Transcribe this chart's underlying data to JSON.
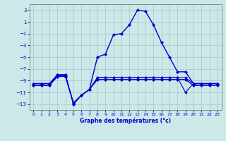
{
  "title": "Graphe des températures (°c)",
  "background_color": "#cce8e8",
  "grid_color": "#a0c8c8",
  "line_color": "#0000cc",
  "xlim": [
    -0.5,
    23.5
  ],
  "ylim": [
    -14,
    4
  ],
  "xticks": [
    0,
    1,
    2,
    3,
    4,
    5,
    6,
    7,
    8,
    9,
    10,
    11,
    12,
    13,
    14,
    15,
    16,
    17,
    18,
    19,
    20,
    21,
    22,
    23
  ],
  "yticks": [
    3,
    1,
    -1,
    -3,
    -5,
    -7,
    -9,
    -11,
    -13
  ],
  "series_main": [
    [
      0,
      -9.5
    ],
    [
      1,
      -9.5
    ],
    [
      2,
      -9.5
    ],
    [
      3,
      -8.0
    ],
    [
      4,
      -8.0
    ],
    [
      5,
      -13.0
    ],
    [
      6,
      -11.5
    ],
    [
      7,
      -10.5
    ],
    [
      8,
      -5.0
    ],
    [
      9,
      -4.5
    ],
    [
      10,
      -1.2
    ],
    [
      11,
      -1.0
    ],
    [
      12,
      0.5
    ],
    [
      13,
      3.0
    ],
    [
      14,
      2.8
    ],
    [
      15,
      0.5
    ],
    [
      16,
      -2.5
    ],
    [
      17,
      -5.0
    ],
    [
      18,
      -7.5
    ],
    [
      19,
      -7.5
    ],
    [
      20,
      -9.5
    ],
    [
      21,
      -9.5
    ],
    [
      22,
      -9.5
    ],
    [
      23,
      -9.5
    ]
  ],
  "series_a": [
    [
      0,
      -9.8
    ],
    [
      1,
      -9.8
    ],
    [
      2,
      -9.8
    ],
    [
      3,
      -8.0
    ],
    [
      4,
      -8.0
    ],
    [
      5,
      -13.0
    ],
    [
      6,
      -11.5
    ],
    [
      7,
      -10.5
    ],
    [
      8,
      -8.5
    ],
    [
      9,
      -8.5
    ],
    [
      10,
      -8.5
    ],
    [
      11,
      -8.5
    ],
    [
      12,
      -8.5
    ],
    [
      13,
      -8.5
    ],
    [
      14,
      -8.5
    ],
    [
      15,
      -8.5
    ],
    [
      16,
      -8.5
    ],
    [
      17,
      -8.5
    ],
    [
      18,
      -8.5
    ],
    [
      19,
      -8.5
    ],
    [
      20,
      -9.5
    ],
    [
      21,
      -9.5
    ],
    [
      22,
      -9.5
    ],
    [
      23,
      -9.5
    ]
  ],
  "series_b": [
    [
      0,
      -9.8
    ],
    [
      1,
      -9.8
    ],
    [
      2,
      -9.8
    ],
    [
      3,
      -8.2
    ],
    [
      4,
      -8.2
    ],
    [
      5,
      -12.8
    ],
    [
      6,
      -11.5
    ],
    [
      7,
      -10.5
    ],
    [
      8,
      -8.5
    ],
    [
      9,
      -8.5
    ],
    [
      10,
      -8.5
    ],
    [
      11,
      -8.5
    ],
    [
      12,
      -8.5
    ],
    [
      13,
      -8.5
    ],
    [
      14,
      -8.5
    ],
    [
      15,
      -8.5
    ],
    [
      16,
      -8.5
    ],
    [
      17,
      -8.5
    ],
    [
      18,
      -8.5
    ],
    [
      19,
      -11.0
    ],
    [
      20,
      -9.5
    ],
    [
      21,
      -9.5
    ],
    [
      22,
      -9.5
    ],
    [
      23,
      -9.5
    ]
  ],
  "series_c": [
    [
      0,
      -9.8
    ],
    [
      1,
      -9.8
    ],
    [
      2,
      -9.8
    ],
    [
      3,
      -8.3
    ],
    [
      4,
      -8.3
    ],
    [
      5,
      -12.8
    ],
    [
      6,
      -11.5
    ],
    [
      7,
      -10.5
    ],
    [
      8,
      -8.8
    ],
    [
      9,
      -8.8
    ],
    [
      10,
      -8.8
    ],
    [
      11,
      -8.8
    ],
    [
      12,
      -8.8
    ],
    [
      13,
      -8.8
    ],
    [
      14,
      -8.8
    ],
    [
      15,
      -8.8
    ],
    [
      16,
      -8.8
    ],
    [
      17,
      -8.8
    ],
    [
      18,
      -8.8
    ],
    [
      19,
      -8.8
    ],
    [
      20,
      -9.8
    ],
    [
      21,
      -9.8
    ],
    [
      22,
      -9.8
    ],
    [
      23,
      -9.8
    ]
  ],
  "series_d": [
    [
      0,
      -9.8
    ],
    [
      1,
      -9.8
    ],
    [
      2,
      -9.8
    ],
    [
      3,
      -8.3
    ],
    [
      4,
      -8.3
    ],
    [
      5,
      -12.8
    ],
    [
      6,
      -11.5
    ],
    [
      7,
      -10.5
    ],
    [
      8,
      -8.8
    ],
    [
      9,
      -8.8
    ],
    [
      10,
      -8.8
    ],
    [
      11,
      -8.8
    ],
    [
      12,
      -8.8
    ],
    [
      13,
      -8.8
    ],
    [
      14,
      -8.8
    ],
    [
      15,
      -8.8
    ],
    [
      16,
      -8.8
    ],
    [
      17,
      -8.8
    ],
    [
      18,
      -8.8
    ],
    [
      19,
      -8.8
    ],
    [
      20,
      -9.8
    ],
    [
      21,
      -9.8
    ],
    [
      22,
      -9.8
    ],
    [
      23,
      -9.8
    ]
  ]
}
